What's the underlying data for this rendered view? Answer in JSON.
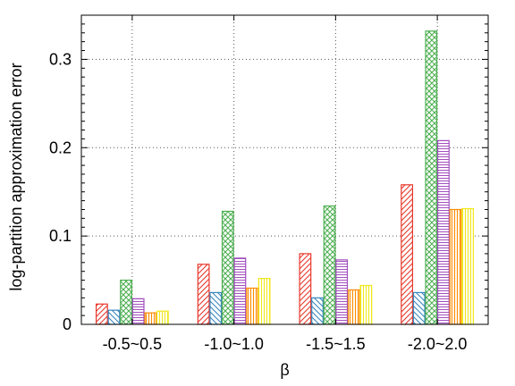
{
  "chart_data": {
    "type": "bar",
    "title": "",
    "xlabel": "β",
    "ylabel": "log-partition approximation error",
    "categories": [
      "-0.5~0.5",
      "-1.0~1.0",
      "-1.5~1.5",
      "-2.0~2.0"
    ],
    "ylim": [
      0,
      0.35
    ],
    "yticks": [
      0,
      0.1,
      0.2,
      0.3
    ],
    "ytick_labels": [
      "0",
      "0.1",
      "0.2",
      "0.3"
    ],
    "grid": true,
    "series": [
      {
        "values": [
          0.023,
          0.068,
          0.08,
          0.158
        ],
        "color": "#e8382c",
        "pattern": "diagonal-right"
      },
      {
        "values": [
          0.016,
          0.036,
          0.03,
          0.036
        ],
        "color": "#3a87c0",
        "pattern": "diagonal-left"
      },
      {
        "values": [
          0.05,
          0.128,
          0.134,
          0.332
        ],
        "color": "#4caf50",
        "pattern": "crosshatch"
      },
      {
        "values": [
          0.029,
          0.075,
          0.073,
          0.208
        ],
        "color": "#a24fbf",
        "pattern": "horizontal"
      },
      {
        "values": [
          0.013,
          0.041,
          0.039,
          0.13
        ],
        "color": "#ff8c00",
        "pattern": "vertical"
      },
      {
        "values": [
          0.015,
          0.052,
          0.044,
          0.131
        ],
        "color": "#f0e81c",
        "pattern": "vertical"
      }
    ]
  }
}
